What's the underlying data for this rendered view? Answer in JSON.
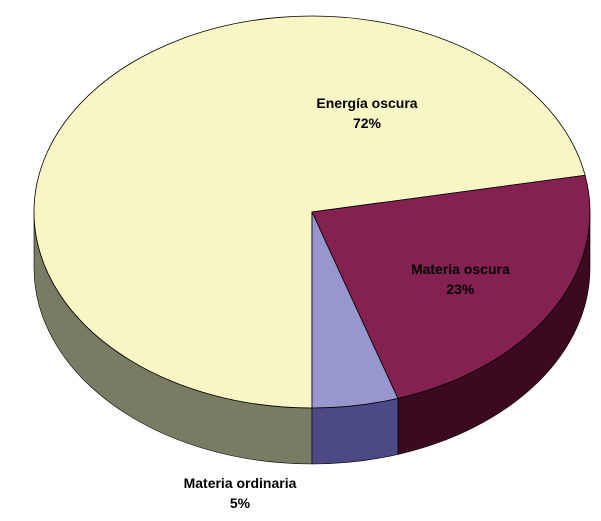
{
  "chart_data": {
    "type": "pie",
    "title": "",
    "three_d": true,
    "legend": "none",
    "slices": [
      {
        "name": "Energía oscura",
        "value": 72,
        "label": "72%",
        "color": "#f7f6c4",
        "side_color": "#7a7b63"
      },
      {
        "name": "Materia oscura",
        "value": 23,
        "label": "23%",
        "color": "#852150",
        "side_color": "#3b0a20"
      },
      {
        "name": "Materia ordinaria",
        "value": 5,
        "label": "5%",
        "color": "#9796cf",
        "side_color": "#4c4a86"
      }
    ]
  }
}
